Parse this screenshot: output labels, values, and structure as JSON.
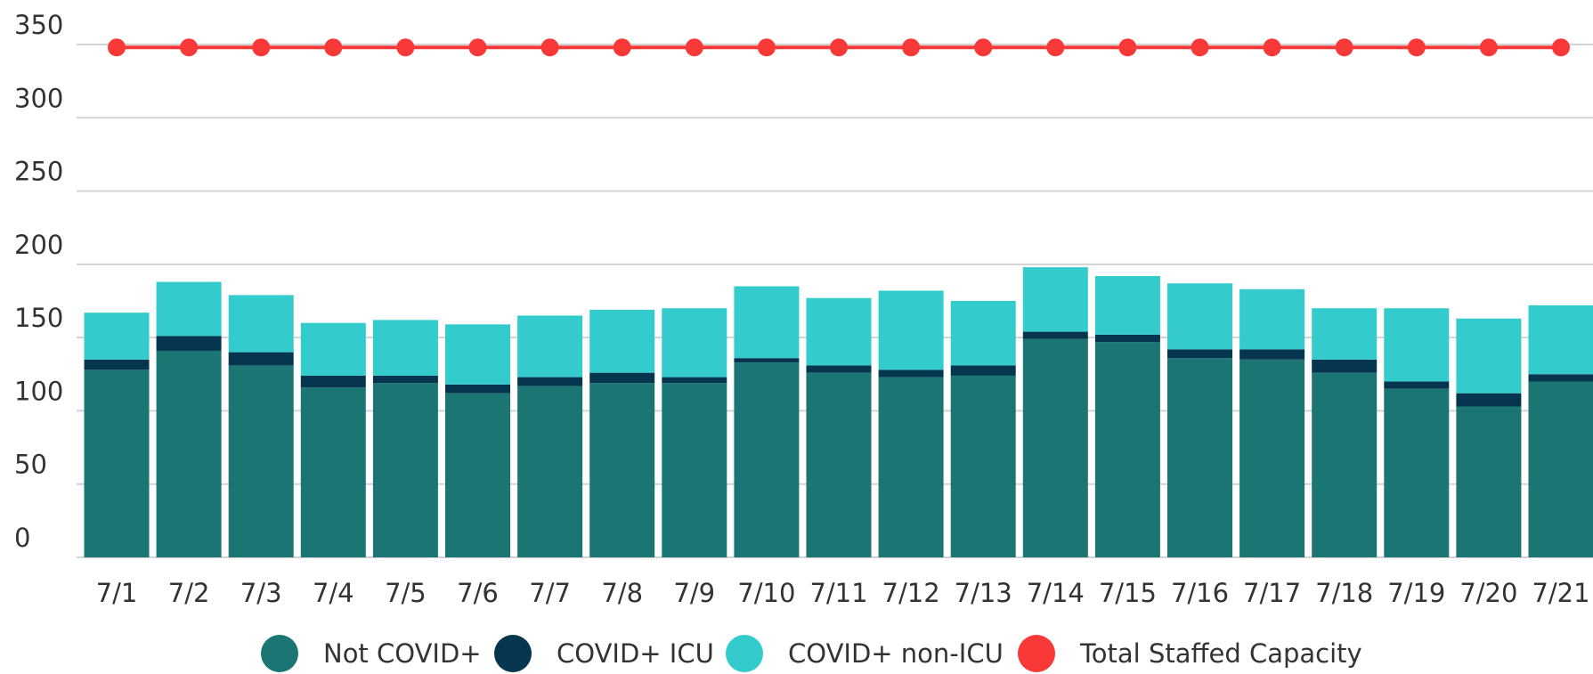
{
  "chart_data": {
    "type": "bar",
    "stacked": true,
    "categories": [
      "7/1",
      "7/2",
      "7/3",
      "7/4",
      "7/5",
      "7/6",
      "7/7",
      "7/8",
      "7/9",
      "7/10",
      "7/11",
      "7/12",
      "7/13",
      "7/14",
      "7/15",
      "7/16",
      "7/17",
      "7/18",
      "7/19",
      "7/20",
      "7/21"
    ],
    "series": [
      {
        "name": "Not COVID+",
        "color": "#1b7673",
        "type": "bar",
        "values": [
          128,
          141,
          131,
          116,
          119,
          112,
          117,
          119,
          119,
          133,
          126,
          123,
          124,
          149,
          147,
          136,
          135,
          126,
          115,
          103,
          120
        ]
      },
      {
        "name": "COVID+ ICU",
        "color": "#06364f",
        "type": "bar",
        "values": [
          7,
          10,
          9,
          8,
          5,
          6,
          6,
          7,
          4,
          3,
          5,
          5,
          7,
          5,
          5,
          6,
          7,
          9,
          5,
          9,
          5
        ]
      },
      {
        "name": "COVID+ non-ICU",
        "color": "#33cbcb",
        "type": "bar",
        "values": [
          32,
          37,
          39,
          36,
          38,
          41,
          42,
          43,
          47,
          49,
          46,
          54,
          44,
          44,
          40,
          45,
          41,
          35,
          50,
          51,
          47
        ]
      },
      {
        "name": "Total Staffed Capacity",
        "color": "#f93838",
        "type": "line",
        "values": [
          348,
          348,
          348,
          348,
          348,
          348,
          348,
          348,
          348,
          348,
          348,
          348,
          348,
          348,
          348,
          348,
          348,
          348,
          348,
          348,
          348
        ]
      }
    ],
    "ylim": [
      0,
      350
    ],
    "yticks": [
      0,
      50,
      100,
      150,
      200,
      250,
      300,
      350
    ],
    "grid": true,
    "legend": "bottom"
  }
}
